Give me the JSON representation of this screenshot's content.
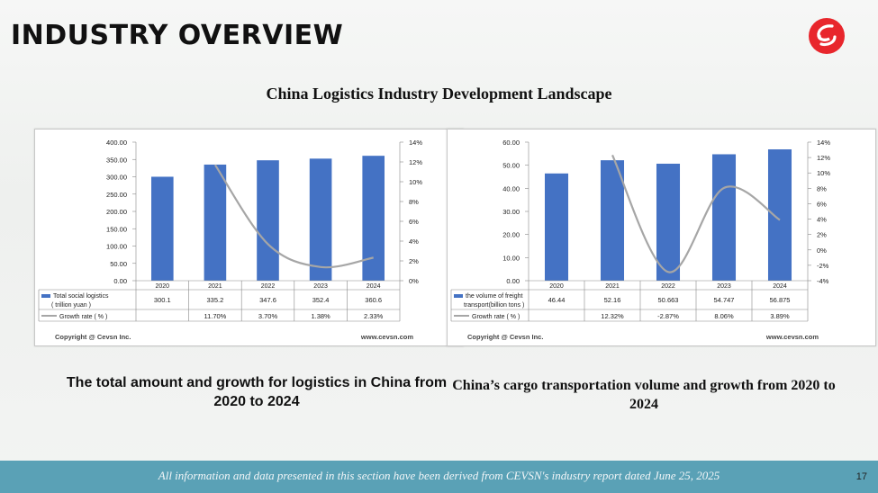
{
  "header": {
    "title": "INDUSTRY OVERVIEW"
  },
  "main": {
    "subtitle": "China Logistics Industry Development Landscape"
  },
  "footer": {
    "note": "All information and data presented in this section have been derived from CEVSN's industry report dated  June 25, 2025",
    "page_number": "17"
  },
  "colors": {
    "bar": "#4472c4",
    "line": "#a6a6a6",
    "footer": "#5aa1b6",
    "logo": "#e8262c"
  },
  "chart_data": [
    {
      "type": "bar",
      "categories": [
        "2020",
        "2021",
        "2022",
        "2023",
        "2024"
      ],
      "series": [
        {
          "name": "Total social logistics ( trillion yuan )",
          "values": [
            300.1,
            335.2,
            347.6,
            352.4,
            360.6
          ],
          "display": [
            "300.1",
            "335.2",
            "347.6",
            "352.4",
            "360.6"
          ],
          "axis": "left"
        },
        {
          "name": "Growth rate ( % )",
          "values": [
            null,
            11.7,
            3.7,
            1.38,
            2.33
          ],
          "display": [
            "",
            "11.70%",
            "3.70%",
            "1.38%",
            "2.33%"
          ],
          "axis": "right",
          "type": "line"
        }
      ],
      "ylim": [
        0,
        400
      ],
      "yticks": [
        "0.00",
        "50.00",
        "100.00",
        "150.00",
        "200.00",
        "250.00",
        "300.00",
        "350.00",
        "400.00"
      ],
      "y2lim": [
        0,
        14
      ],
      "y2ticks": [
        "0%",
        "2%",
        "4%",
        "6%",
        "8%",
        "10%",
        "12%",
        "14%"
      ],
      "copyright": "Copyright @ Cevsn Inc.",
      "website": "www.cevsn.com",
      "caption": "The total amount and growth for logistics in China from 2020 to 2024"
    },
    {
      "type": "bar",
      "categories": [
        "2020",
        "2021",
        "2022",
        "2023",
        "2024"
      ],
      "series": [
        {
          "name": "the volume of freight transport(billion tons )",
          "values": [
            46.44,
            52.16,
            50.663,
            54.747,
            56.875
          ],
          "display": [
            "46.44",
            "52.16",
            "50.663",
            "54.747",
            "56.875"
          ],
          "axis": "left"
        },
        {
          "name": "Growth rate ( % )",
          "values": [
            null,
            12.32,
            -2.87,
            8.06,
            3.89
          ],
          "display": [
            "",
            "12.32%",
            "-2.87%",
            "8.06%",
            "3.89%"
          ],
          "axis": "right",
          "type": "line"
        }
      ],
      "ylim": [
        0,
        60
      ],
      "yticks": [
        "0.00",
        "10.00",
        "20.00",
        "30.00",
        "40.00",
        "50.00",
        "60.00"
      ],
      "y2lim": [
        -4,
        14
      ],
      "y2ticks": [
        "-4%",
        "-2%",
        "0%",
        "2%",
        "4%",
        "6%",
        "8%",
        "10%",
        "12%",
        "14%"
      ],
      "copyright": "Copyright @ Cevsn Inc.",
      "website": "www.cevsn.com",
      "caption": "China’s cargo transportation volume and growth from 2020 to 2024"
    }
  ]
}
